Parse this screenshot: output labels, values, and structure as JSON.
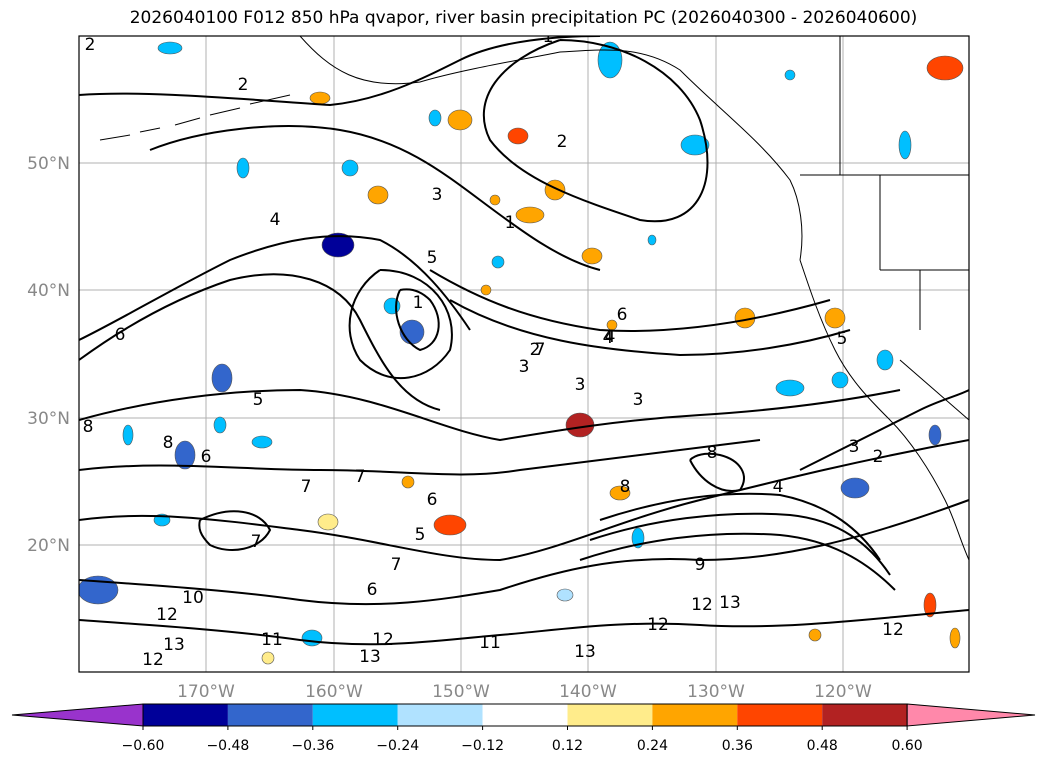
{
  "title": "2026040100 F012 850 hPa qvapor, river basin precipitation PC (2026040300 - 2026040600)",
  "map": {
    "lat_labels": [
      "50°N",
      "40°N",
      "30°N",
      "20°N"
    ],
    "lon_labels": [
      "170°W",
      "160°W",
      "150°W",
      "140°W",
      "130°W",
      "120°W"
    ],
    "contour_labels": [
      "2",
      "2",
      "1",
      "2",
      "4",
      "1",
      "3",
      "5",
      "1",
      "6",
      "7",
      "2",
      "3",
      "4",
      "3",
      "3",
      "5",
      "8",
      "8",
      "6",
      "7",
      "8",
      "7",
      "6",
      "5",
      "7",
      "6",
      "9",
      "10",
      "12",
      "13",
      "12",
      "11",
      "13",
      "11",
      "12",
      "12",
      "13",
      "13",
      "12",
      "8",
      "4",
      "2",
      "3",
      "5",
      "7",
      "6",
      "4",
      "12"
    ]
  },
  "colorbar": {
    "colors": [
      "#9933cc",
      "#000099",
      "#3366cc",
      "#00bfff",
      "#b0e2ff",
      "#ffffff",
      "#ffec8b",
      "#ffa500",
      "#ff4500",
      "#b22222",
      "#ff88aa"
    ],
    "tick_labels": [
      "−0.60",
      "−0.48",
      "−0.36",
      "−0.24",
      "−0.12",
      "0.12",
      "0.24",
      "0.36",
      "0.48",
      "0.60"
    ]
  },
  "chart_data": {
    "type": "heatmap",
    "title": "2026040100 F012 850 hPa qvapor, river basin precipitation PC (2026040300 - 2026040600)",
    "xlabel": "",
    "ylabel": "",
    "x_ticks": [
      "170°W",
      "160°W",
      "150°W",
      "140°W",
      "130°W",
      "120°W"
    ],
    "y_ticks": [
      "50°N",
      "40°N",
      "30°N",
      "20°N"
    ],
    "colorbar_levels": [
      -0.6,
      -0.48,
      -0.36,
      -0.24,
      -0.12,
      0.12,
      0.24,
      0.36,
      0.48,
      0.6
    ],
    "grid": true
  }
}
